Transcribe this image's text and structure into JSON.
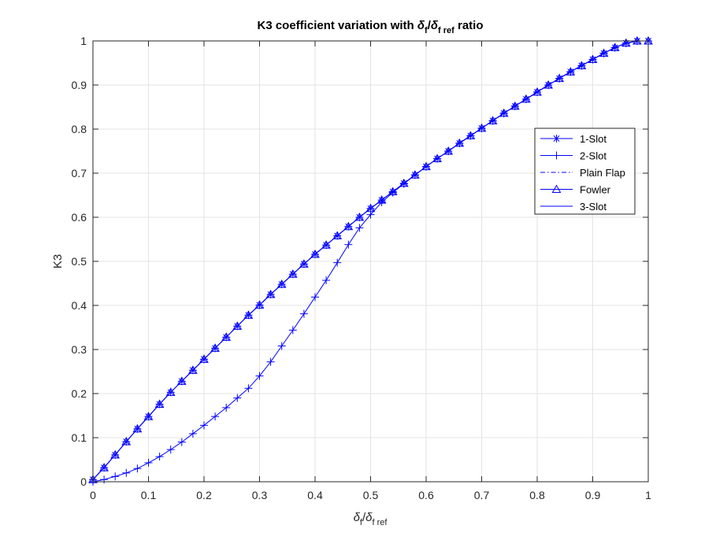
{
  "chart_data": {
    "type": "line",
    "title": {
      "prefix": "K3 coefficient variation with ",
      "delta1": "δ",
      "sub1": "f",
      "slash": "/",
      "delta2": "δ",
      "sub2": "f ref",
      "suffix": " ratio"
    },
    "xlabel": {
      "delta1": "δ",
      "sub1": "f",
      "slash": "/",
      "delta2": "δ",
      "sub2": "f ref"
    },
    "ylabel": "K3",
    "xlim": [
      0,
      1
    ],
    "ylim": [
      0,
      1
    ],
    "xticks": [
      0,
      0.1,
      0.2,
      0.3,
      0.4,
      0.5,
      0.6,
      0.7,
      0.8,
      0.9,
      1
    ],
    "yticks": [
      0,
      0.1,
      0.2,
      0.3,
      0.4,
      0.5,
      0.6,
      0.7,
      0.8,
      0.9,
      1
    ],
    "xtick_labels": [
      "0",
      "0.1",
      "0.2",
      "0.3",
      "0.4",
      "0.5",
      "0.6",
      "0.7",
      "0.8",
      "0.9",
      "1"
    ],
    "ytick_labels": [
      "0",
      "0.1",
      "0.2",
      "0.3",
      "0.4",
      "0.5",
      "0.6",
      "0.7",
      "0.8",
      "0.9",
      "1"
    ],
    "grid": true,
    "legend_position": "upper-right",
    "line_color": "#0000ff",
    "x": [
      0,
      0.02,
      0.04,
      0.06,
      0.08,
      0.1,
      0.12,
      0.14,
      0.16,
      0.18,
      0.2,
      0.22,
      0.24,
      0.26,
      0.28,
      0.3,
      0.32,
      0.34,
      0.36,
      0.38,
      0.4,
      0.42,
      0.44,
      0.46,
      0.48,
      0.5,
      0.52,
      0.54,
      0.56,
      0.58,
      0.6,
      0.62,
      0.64,
      0.66,
      0.68,
      0.7,
      0.72,
      0.74,
      0.76,
      0.78,
      0.8,
      0.82,
      0.84,
      0.86,
      0.88,
      0.9,
      0.92,
      0.94,
      0.96,
      0.98,
      1
    ],
    "series": [
      {
        "name": "1-Slot",
        "marker": "asterisk",
        "linestyle": "solid",
        "values": [
          0.005,
          0.032,
          0.061,
          0.091,
          0.12,
          0.148,
          0.176,
          0.203,
          0.228,
          0.253,
          0.278,
          0.303,
          0.328,
          0.353,
          0.378,
          0.401,
          0.425,
          0.448,
          0.471,
          0.494,
          0.516,
          0.537,
          0.558,
          0.579,
          0.6,
          0.62,
          0.639,
          0.658,
          0.677,
          0.696,
          0.715,
          0.733,
          0.75,
          0.768,
          0.785,
          0.802,
          0.819,
          0.836,
          0.852,
          0.868,
          0.884,
          0.9,
          0.915,
          0.93,
          0.944,
          0.958,
          0.972,
          0.985,
          0.995,
          1.0,
          1.0
        ]
      },
      {
        "name": "2-Slot",
        "marker": "plus",
        "linestyle": "solid",
        "values": [
          0.0,
          0.005,
          0.012,
          0.02,
          0.03,
          0.043,
          0.057,
          0.073,
          0.09,
          0.109,
          0.128,
          0.148,
          0.168,
          0.19,
          0.212,
          0.24,
          0.272,
          0.308,
          0.344,
          0.381,
          0.419,
          0.457,
          0.497,
          0.538,
          0.576,
          0.606,
          0.634,
          0.656,
          0.676,
          0.696,
          0.715,
          0.733,
          0.75,
          0.768,
          0.785,
          0.802,
          0.819,
          0.836,
          0.852,
          0.868,
          0.884,
          0.9,
          0.915,
          0.93,
          0.944,
          0.958,
          0.972,
          0.985,
          0.995,
          1.0,
          1.0
        ]
      },
      {
        "name": "Plain Flap",
        "marker": "none",
        "linestyle": "dashdot",
        "values": [
          0.005,
          0.032,
          0.061,
          0.091,
          0.12,
          0.148,
          0.176,
          0.203,
          0.228,
          0.253,
          0.278,
          0.303,
          0.328,
          0.353,
          0.378,
          0.401,
          0.425,
          0.448,
          0.471,
          0.494,
          0.516,
          0.537,
          0.558,
          0.579,
          0.6,
          0.62,
          0.639,
          0.658,
          0.677,
          0.696,
          0.715,
          0.733,
          0.75,
          0.768,
          0.785,
          0.802,
          0.819,
          0.836,
          0.852,
          0.868,
          0.884,
          0.9,
          0.915,
          0.93,
          0.944,
          0.958,
          0.972,
          0.985,
          0.995,
          1.0,
          1.0
        ]
      },
      {
        "name": "Fowler",
        "marker": "triangle",
        "linestyle": "solid",
        "values": [
          0.005,
          0.032,
          0.061,
          0.091,
          0.12,
          0.148,
          0.176,
          0.203,
          0.228,
          0.253,
          0.278,
          0.303,
          0.328,
          0.353,
          0.378,
          0.401,
          0.425,
          0.448,
          0.471,
          0.494,
          0.516,
          0.537,
          0.558,
          0.579,
          0.6,
          0.62,
          0.639,
          0.658,
          0.677,
          0.696,
          0.715,
          0.733,
          0.75,
          0.768,
          0.785,
          0.802,
          0.819,
          0.836,
          0.852,
          0.868,
          0.884,
          0.9,
          0.915,
          0.93,
          0.944,
          0.958,
          0.972,
          0.985,
          0.995,
          1.0,
          1.0
        ]
      },
      {
        "name": "3-Slot",
        "marker": "none",
        "linestyle": "solid",
        "values": [
          0.005,
          0.032,
          0.061,
          0.091,
          0.12,
          0.148,
          0.176,
          0.203,
          0.228,
          0.253,
          0.278,
          0.303,
          0.328,
          0.353,
          0.378,
          0.401,
          0.425,
          0.448,
          0.471,
          0.494,
          0.516,
          0.537,
          0.558,
          0.579,
          0.6,
          0.62,
          0.639,
          0.658,
          0.677,
          0.696,
          0.715,
          0.733,
          0.75,
          0.768,
          0.785,
          0.802,
          0.819,
          0.836,
          0.852,
          0.868,
          0.884,
          0.9,
          0.915,
          0.93,
          0.944,
          0.958,
          0.972,
          0.985,
          0.995,
          1.0,
          1.0
        ]
      }
    ]
  }
}
